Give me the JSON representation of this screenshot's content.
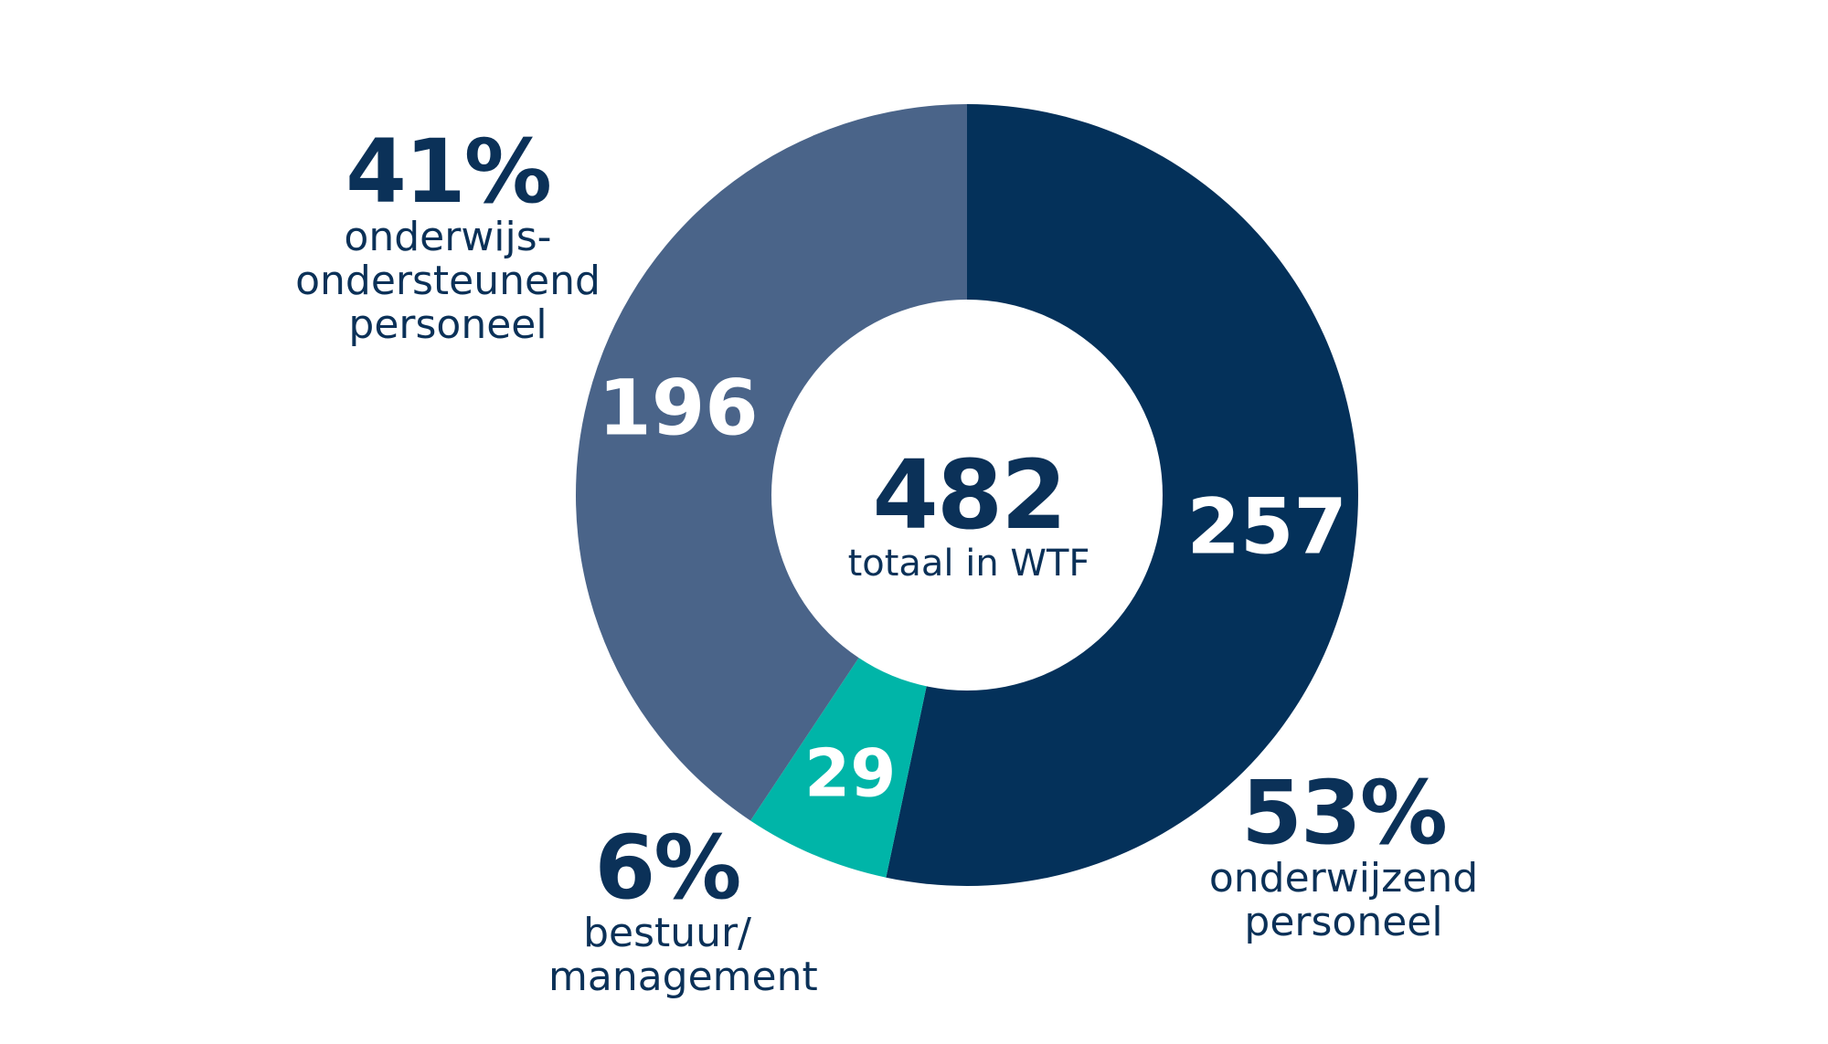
{
  "chart_data": {
    "type": "pie",
    "style": "donut",
    "total": 482,
    "total_label": "totaal in WTF",
    "slices": [
      {
        "value": 257,
        "percent_label": "53%",
        "label": "onderwijzend\npersoneel",
        "color": "#04315a"
      },
      {
        "value": 29,
        "percent_label": "6%",
        "label": "bestuur/\nmanagement",
        "color": "#00b5a8"
      },
      {
        "value": 196,
        "percent_label": "41%",
        "label": "onderwijs-\nondersteunend\npersoneel",
        "color": "#4a6489"
      }
    ]
  }
}
